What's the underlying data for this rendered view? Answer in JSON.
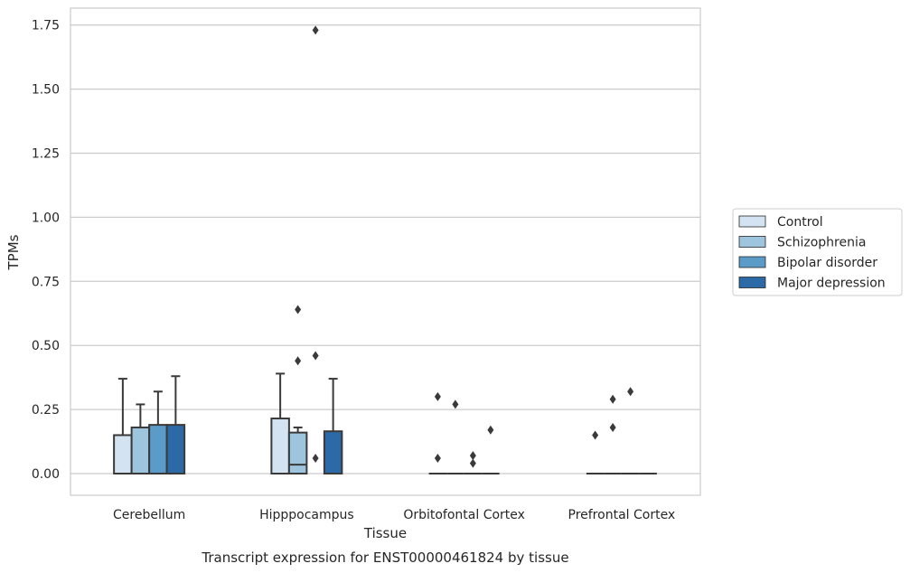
{
  "chart_data": {
    "type": "box",
    "title": "Transcript expression for ENST00000461824 by tissue",
    "xlabel": "Tissue",
    "ylabel": "TPMs",
    "ylim": [
      -0.085,
      1.82
    ],
    "yticks": [
      "0.00",
      "0.25",
      "0.50",
      "0.75",
      "1.00",
      "1.25",
      "1.50",
      "1.75"
    ],
    "grid": true,
    "legend_position": "right",
    "categories": [
      "Cerebellum",
      "Hipppocampus",
      "Orbitofontal Cortex",
      "Prefrontal Cortex"
    ],
    "series": [
      {
        "name": "Control",
        "color": "#d4e3f1",
        "boxes": [
          {
            "q1": 0.0,
            "median": 0.0,
            "q3": 0.15,
            "whisker_low": 0.0,
            "whisker_high": 0.37,
            "outliers": []
          },
          {
            "q1": 0.0,
            "median": 0.0,
            "q3": 0.215,
            "whisker_low": 0.0,
            "whisker_high": 0.39,
            "outliers": []
          },
          {
            "q1": 0.0,
            "median": 0.0,
            "q3": 0.0,
            "whisker_low": 0.0,
            "whisker_high": 0.0,
            "outliers": [
              0.3,
              0.06
            ]
          },
          {
            "q1": 0.0,
            "median": 0.0,
            "q3": 0.0,
            "whisker_low": 0.0,
            "whisker_high": 0.0,
            "outliers": [
              0.15
            ]
          }
        ]
      },
      {
        "name": "Schizophrenia",
        "color": "#9ec5de",
        "boxes": [
          {
            "q1": 0.0,
            "median": 0.0,
            "q3": 0.18,
            "whisker_low": 0.0,
            "whisker_high": 0.27,
            "outliers": []
          },
          {
            "q1": 0.0,
            "median": 0.035,
            "q3": 0.16,
            "whisker_low": 0.0,
            "whisker_high": 0.18,
            "outliers": [
              0.64,
              0.44
            ]
          },
          {
            "q1": 0.0,
            "median": 0.0,
            "q3": 0.0,
            "whisker_low": 0.0,
            "whisker_high": 0.0,
            "outliers": [
              0.27
            ]
          },
          {
            "q1": 0.0,
            "median": 0.0,
            "q3": 0.0,
            "whisker_low": 0.0,
            "whisker_high": 0.0,
            "outliers": [
              0.29,
              0.18
            ]
          }
        ]
      },
      {
        "name": "Bipolar disorder",
        "color": "#5b9bc8",
        "boxes": [
          {
            "q1": 0.0,
            "median": 0.0,
            "q3": 0.19,
            "whisker_low": 0.0,
            "whisker_high": 0.32,
            "outliers": []
          },
          {
            "q1": null,
            "median": null,
            "q3": null,
            "whisker_low": null,
            "whisker_high": null,
            "outliers": [
              1.73,
              0.46,
              0.06
            ]
          },
          {
            "q1": 0.0,
            "median": 0.0,
            "q3": 0.0,
            "whisker_low": 0.0,
            "whisker_high": 0.0,
            "outliers": [
              0.07,
              0.04
            ]
          },
          {
            "q1": 0.0,
            "median": 0.0,
            "q3": 0.0,
            "whisker_low": 0.0,
            "whisker_high": 0.0,
            "outliers": [
              0.32
            ]
          }
        ]
      },
      {
        "name": "Major depression",
        "color": "#2b6aa6",
        "boxes": [
          {
            "q1": 0.0,
            "median": 0.0,
            "q3": 0.19,
            "whisker_low": 0.0,
            "whisker_high": 0.38,
            "outliers": []
          },
          {
            "q1": 0.0,
            "median": 0.0,
            "q3": 0.165,
            "whisker_low": 0.0,
            "whisker_high": 0.37,
            "outliers": []
          },
          {
            "q1": 0.0,
            "median": 0.0,
            "q3": 0.0,
            "whisker_low": 0.0,
            "whisker_high": 0.0,
            "outliers": [
              0.17
            ]
          },
          {
            "q1": 0.0,
            "median": 0.0,
            "q3": 0.0,
            "whisker_low": 0.0,
            "whisker_high": 0.0,
            "outliers": []
          }
        ]
      }
    ]
  }
}
